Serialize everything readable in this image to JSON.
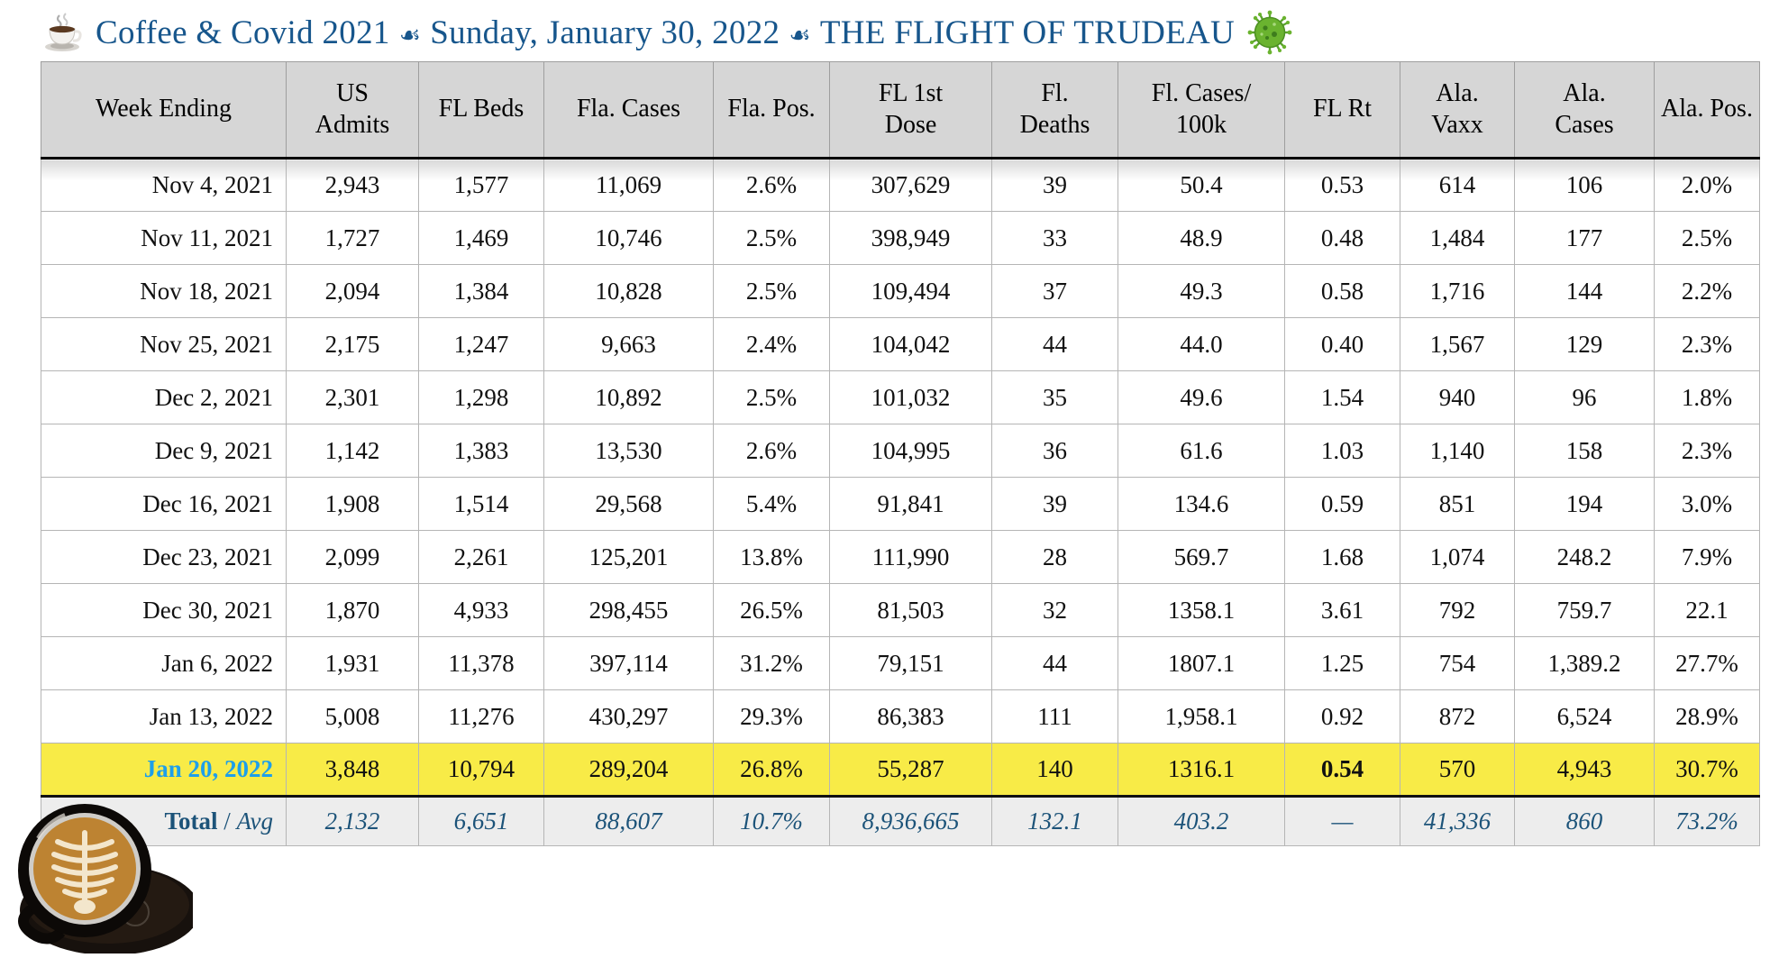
{
  "title": {
    "text_before_date": "Coffee & Covid 2021",
    "separator": "☙",
    "date_text": "Sunday, January 30, 2022",
    "headline": "THE FLIGHT OF TRUDEAU",
    "coffee_icon": "coffee-cup",
    "virus_icon": "virus"
  },
  "chart_data": {
    "type": "table",
    "title": "Coffee & Covid weekly statistics",
    "columns": [
      "Week Ending",
      "US\nAdmits",
      "FL Beds",
      "Fla. Cases",
      "Fla. Pos.",
      "FL 1st\nDose",
      "Fl.\nDeaths",
      "Fl. Cases/\n100k",
      "FL Rt",
      "Ala.\nVaxx",
      "Ala.\nCases",
      "Ala. Pos."
    ],
    "rows": [
      {
        "cells": [
          "Nov 4, 2021",
          "2,943",
          "1,577",
          "11,069",
          "2.6%",
          "307,629",
          "39",
          "50.4",
          "0.53",
          "614",
          "106",
          "2.0%"
        ]
      },
      {
        "cells": [
          "Nov 11, 2021",
          "1,727",
          "1,469",
          "10,746",
          "2.5%",
          "398,949",
          "33",
          "48.9",
          "0.48",
          "1,484",
          "177",
          "2.5%"
        ]
      },
      {
        "cells": [
          "Nov 18, 2021",
          "2,094",
          "1,384",
          "10,828",
          "2.5%",
          "109,494",
          "37",
          "49.3",
          "0.58",
          "1,716",
          "144",
          "2.2%"
        ]
      },
      {
        "cells": [
          "Nov 25, 2021",
          "2,175",
          "1,247",
          "9,663",
          "2.4%",
          "104,042",
          "44",
          "44.0",
          "0.40",
          "1,567",
          "129",
          "2.3%"
        ]
      },
      {
        "cells": [
          "Dec 2, 2021",
          "2,301",
          "1,298",
          "10,892",
          "2.5%",
          "101,032",
          "35",
          "49.6",
          "1.54",
          "940",
          "96",
          "1.8%"
        ]
      },
      {
        "cells": [
          "Dec 9, 2021",
          "1,142",
          "1,383",
          "13,530",
          "2.6%",
          "104,995",
          "36",
          "61.6",
          "1.03",
          "1,140",
          "158",
          "2.3%"
        ]
      },
      {
        "cells": [
          "Dec 16, 2021",
          "1,908",
          "1,514",
          "29,568",
          "5.4%",
          "91,841",
          "39",
          "134.6",
          "0.59",
          "851",
          "194",
          "3.0%"
        ]
      },
      {
        "cells": [
          "Dec 23, 2021",
          "2,099",
          "2,261",
          "125,201",
          "13.8%",
          "111,990",
          "28",
          "569.7",
          "1.68",
          "1,074",
          "248.2",
          "7.9%"
        ]
      },
      {
        "cells": [
          "Dec 30, 2021",
          "1,870",
          "4,933",
          "298,455",
          "26.5%",
          "81,503",
          "32",
          "1358.1",
          "3.61",
          "792",
          "759.7",
          "22.1"
        ]
      },
      {
        "cells": [
          "Jan 6, 2022",
          "1,931",
          "11,378",
          "397,114",
          "31.2%",
          "79,151",
          "44",
          "1807.1",
          "1.25",
          "754",
          "1,389.2",
          "27.7%"
        ]
      },
      {
        "cells": [
          "Jan 13, 2022",
          "5,008",
          "11,276",
          "430,297",
          "29.3%",
          "86,383",
          "111",
          "1,958.1",
          "0.92",
          "872",
          "6,524",
          "28.9%"
        ]
      },
      {
        "cells": [
          "Jan 20, 2022",
          "3,848",
          "10,794",
          "289,204",
          "26.8%",
          "55,287",
          "140",
          "1316.1",
          "0.54",
          "570",
          "4,943",
          "30.7%"
        ],
        "highlight": true,
        "bold_cells": [
          8
        ]
      }
    ],
    "total_row": {
      "label_bold": "Total",
      "label_separator": " / ",
      "label_italic": "Avg",
      "cells": [
        "2,132",
        "6,651",
        "88,607",
        "10.7%",
        "8,936,665",
        "132.1",
        "403.2",
        "—",
        "41,336",
        "860",
        "73.2%"
      ]
    }
  },
  "colors": {
    "title_blue": "#17568C",
    "header_gray": "#D6D6D6",
    "highlight_yellow": "#F8EB47",
    "highlight_date_blue": "#1E9FEA",
    "total_text_blue": "#1C5379",
    "total_row_gray": "#EDEDED"
  }
}
